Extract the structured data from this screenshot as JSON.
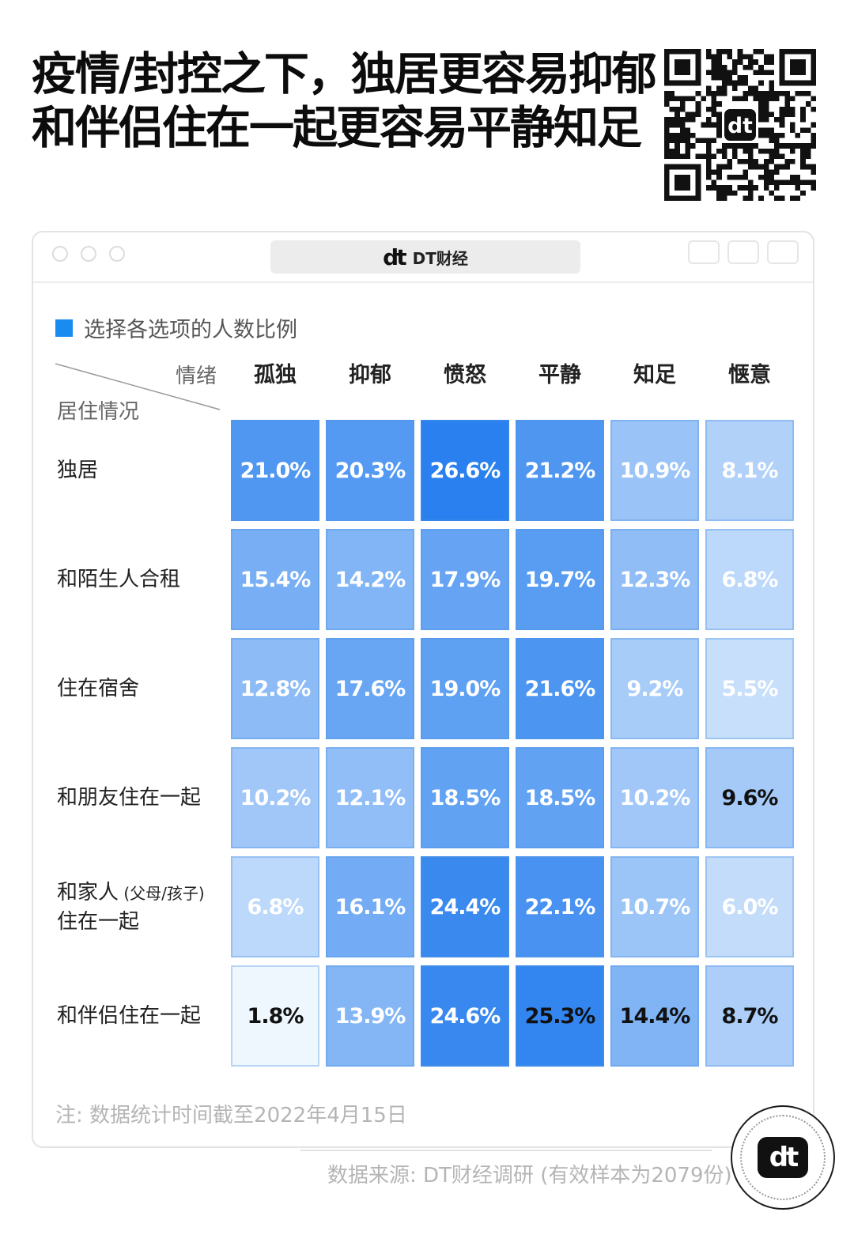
{
  "title": {
    "line1": "疫情/封控之下，独居更容易抑郁",
    "line2": "和伴侣住在一起更容易平静知足"
  },
  "qr_icon": "qr-code",
  "window": {
    "brand_logo": "dt",
    "brand_name": "DT财经"
  },
  "legend": {
    "label": "选择各选项的人数比例",
    "color": "#1a8cf0"
  },
  "corner": {
    "column_axis": "情绪",
    "row_axis": "居住情况"
  },
  "footer": {
    "note": "注: 数据统计时间截至2022年4月15日",
    "source": "数据来源: DT财经调研 (有效样本为2079份)"
  },
  "badge_logo": "dt",
  "chart_data": {
    "type": "heatmap",
    "title": "疫情/封控之下，独居更容易抑郁 和伴侣住在一起更容易平静知足",
    "xlabel": "情绪",
    "ylabel": "居住情况",
    "unit": "%",
    "columns": [
      "孤独",
      "抑郁",
      "愤怒",
      "平静",
      "知足",
      "惬意"
    ],
    "rows": [
      {
        "label": "独居",
        "values": [
          21.0,
          20.3,
          26.6,
          21.2,
          10.9,
          8.1
        ]
      },
      {
        "label": "和陌生人合租",
        "values": [
          15.4,
          14.2,
          17.9,
          19.7,
          12.3,
          6.8
        ]
      },
      {
        "label": "住在宿舍",
        "values": [
          12.8,
          17.6,
          19.0,
          21.6,
          9.2,
          5.5
        ]
      },
      {
        "label": "和朋友住在一起",
        "values": [
          10.2,
          12.1,
          18.5,
          18.5,
          10.2,
          9.6
        ]
      },
      {
        "label": "和家人",
        "label_suffix": "(父母/孩子)",
        "label_line2": "住在一起",
        "values": [
          6.8,
          16.1,
          24.4,
          22.1,
          10.7,
          6.0
        ]
      },
      {
        "label": "和伴侣住在一起",
        "values": [
          1.8,
          13.9,
          24.6,
          25.3,
          14.4,
          8.7
        ]
      }
    ],
    "dark_text_cells": [
      [
        3,
        5
      ],
      [
        5,
        0
      ],
      [
        5,
        3
      ],
      [
        5,
        4
      ],
      [
        5,
        5
      ]
    ],
    "color_scale": {
      "low": "#eef6fe",
      "high": "#2a80ee"
    }
  }
}
